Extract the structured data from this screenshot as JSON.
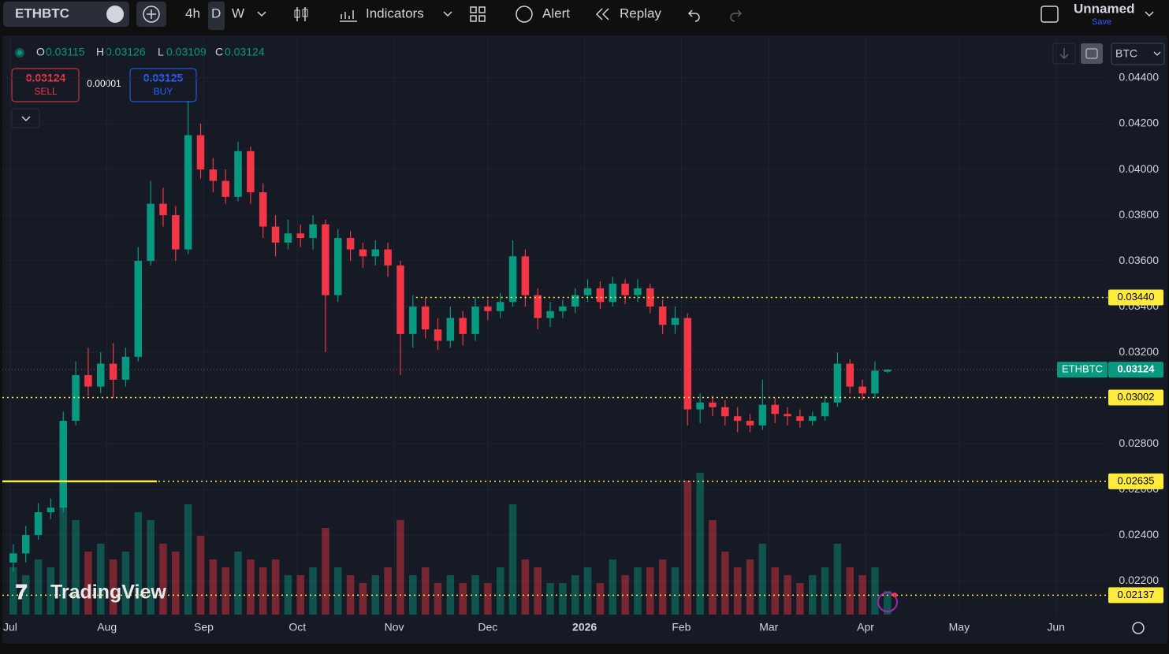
{
  "toolbar": {
    "symbol": "ETHBTC",
    "intervals": [
      "4h",
      "D",
      "W"
    ],
    "indicators": "Indicators",
    "alert": "Alert",
    "replay": "Replay",
    "layout_name": "Unnamed",
    "save": "Save"
  },
  "ohlc_legend": [
    {
      "label": "O",
      "value": "0.03115"
    },
    {
      "label": "H",
      "value": "0.03126"
    },
    {
      "label": "L",
      "value": "0.03109"
    },
    {
      "label": "C",
      "value": "0.03124"
    }
  ],
  "trade": {
    "sell_price": "0.03124",
    "sell": "SELL",
    "spread": "0.00001",
    "buy_price": "0.03125",
    "buy": "BUY"
  },
  "currency": "BTC",
  "watermark": "TradingView",
  "chart_data": {
    "type": "candlestick",
    "up_color": "#089981",
    "down_color": "#f23645",
    "x": [
      1,
      5,
      9,
      13,
      17,
      21,
      25,
      29,
      33,
      37,
      41,
      45,
      49,
      53,
      57,
      61,
      65,
      69,
      73,
      77,
      81,
      85,
      89,
      93,
      97,
      101,
      105,
      109,
      113,
      117,
      121,
      125,
      129,
      133,
      137,
      141,
      145,
      149,
      153,
      157,
      161,
      165,
      169,
      173,
      177,
      181,
      185,
      189,
      193,
      197,
      201,
      205,
      209,
      213,
      217,
      221,
      225,
      229,
      233,
      237,
      241,
      245,
      249,
      253,
      257,
      261,
      265,
      269,
      273,
      277,
      281
    ],
    "opens": [
      0.0228,
      0.0232,
      0.024,
      0.025,
      0.0252,
      0.029,
      0.031,
      0.0305,
      0.0315,
      0.0308,
      0.0318,
      0.036,
      0.0385,
      0.038,
      0.0365,
      0.0415,
      0.04,
      0.0395,
      0.0388,
      0.0408,
      0.039,
      0.0375,
      0.0368,
      0.0372,
      0.037,
      0.0376,
      0.0345,
      0.037,
      0.0365,
      0.0362,
      0.0365,
      0.0358,
      0.0328,
      0.034,
      0.033,
      0.0325,
      0.0335,
      0.0328,
      0.034,
      0.0338,
      0.0342,
      0.0362,
      0.0345,
      0.0335,
      0.0338,
      0.034,
      0.0345,
      0.0348,
      0.0342,
      0.035,
      0.0345,
      0.0348,
      0.034,
      0.0332,
      0.0335,
      0.0295,
      0.0298,
      0.0296,
      0.0292,
      0.029,
      0.0288,
      0.0297,
      0.0293,
      0.0292,
      0.029,
      0.0292,
      0.0298,
      0.0315,
      0.0305,
      0.0302,
      0.03115
    ],
    "highs": [
      0.0236,
      0.0244,
      0.0254,
      0.0256,
      0.0294,
      0.0316,
      0.0322,
      0.032,
      0.0324,
      0.0322,
      0.0366,
      0.0395,
      0.0392,
      0.0384,
      0.043,
      0.042,
      0.0405,
      0.04,
      0.0412,
      0.041,
      0.0394,
      0.038,
      0.0378,
      0.0376,
      0.038,
      0.0378,
      0.0374,
      0.0373,
      0.0368,
      0.0369,
      0.0368,
      0.036,
      0.0345,
      0.0344,
      0.0335,
      0.034,
      0.0338,
      0.0344,
      0.0343,
      0.0346,
      0.0369,
      0.0365,
      0.0348,
      0.0342,
      0.0343,
      0.0348,
      0.0352,
      0.0351,
      0.0353,
      0.0352,
      0.0352,
      0.035,
      0.0343,
      0.034,
      0.0337,
      0.0302,
      0.0301,
      0.0299,
      0.0296,
      0.0293,
      0.0308,
      0.03,
      0.0296,
      0.0295,
      0.0294,
      0.0301,
      0.032,
      0.0317,
      0.0308,
      0.0316,
      0.03126
    ],
    "lows": [
      0.0224,
      0.0228,
      0.0238,
      0.0247,
      0.025,
      0.0288,
      0.0301,
      0.0302,
      0.03,
      0.0305,
      0.0316,
      0.0358,
      0.0375,
      0.036,
      0.0363,
      0.0396,
      0.039,
      0.0385,
      0.0386,
      0.0385,
      0.037,
      0.0362,
      0.0365,
      0.0366,
      0.0365,
      0.032,
      0.0342,
      0.036,
      0.0357,
      0.0358,
      0.0353,
      0.031,
      0.0322,
      0.0326,
      0.0321,
      0.0322,
      0.0323,
      0.0325,
      0.0334,
      0.0335,
      0.034,
      0.034,
      0.033,
      0.0331,
      0.0335,
      0.0337,
      0.0342,
      0.0339,
      0.034,
      0.0341,
      0.0342,
      0.0337,
      0.0328,
      0.0328,
      0.0288,
      0.0289,
      0.0292,
      0.0288,
      0.0285,
      0.0285,
      0.0286,
      0.0289,
      0.0288,
      0.0287,
      0.0288,
      0.029,
      0.0296,
      0.0302,
      0.0299,
      0.03,
      0.03109
    ],
    "closes": [
      0.0232,
      0.024,
      0.025,
      0.0252,
      0.029,
      0.031,
      0.0305,
      0.0315,
      0.0308,
      0.0318,
      0.036,
      0.0385,
      0.038,
      0.0365,
      0.0415,
      0.04,
      0.0395,
      0.0388,
      0.0408,
      0.039,
      0.0375,
      0.0368,
      0.0372,
      0.037,
      0.0376,
      0.0345,
      0.037,
      0.0365,
      0.0362,
      0.0365,
      0.0358,
      0.0328,
      0.034,
      0.033,
      0.0325,
      0.0335,
      0.0328,
      0.034,
      0.0338,
      0.0342,
      0.0362,
      0.0345,
      0.0335,
      0.0338,
      0.034,
      0.0345,
      0.0348,
      0.0342,
      0.035,
      0.0345,
      0.0348,
      0.034,
      0.0332,
      0.0335,
      0.0295,
      0.0298,
      0.0296,
      0.0292,
      0.029,
      0.0288,
      0.0297,
      0.0293,
      0.0292,
      0.029,
      0.0292,
      0.0298,
      0.0315,
      0.0305,
      0.0302,
      0.0312,
      0.03124
    ],
    "volume": [
      30,
      25,
      35,
      30,
      70,
      60,
      40,
      45,
      35,
      40,
      65,
      60,
      45,
      40,
      70,
      50,
      35,
      30,
      40,
      35,
      30,
      35,
      25,
      25,
      30,
      55,
      30,
      25,
      20,
      25,
      30,
      60,
      25,
      30,
      20,
      25,
      20,
      25,
      20,
      30,
      70,
      35,
      30,
      20,
      20,
      25,
      30,
      20,
      35,
      25,
      30,
      30,
      35,
      30,
      85,
      90,
      60,
      40,
      30,
      35,
      45,
      30,
      25,
      20,
      25,
      30,
      45,
      30,
      25,
      30,
      15
    ],
    "volume_lim": [
      0,
      100
    ],
    "xlim": [
      -2.5,
      351.5
    ],
    "xticks": [
      {
        "value": 0,
        "label": "Jul"
      },
      {
        "value": 31,
        "label": "Aug"
      },
      {
        "value": 62,
        "label": "Sep"
      },
      {
        "value": 92,
        "label": "Oct"
      },
      {
        "value": 123,
        "label": "Nov"
      },
      {
        "value": 153,
        "label": "Dec"
      },
      {
        "value": 184,
        "label": "2026"
      },
      {
        "value": 215,
        "label": "Feb"
      },
      {
        "value": 243,
        "label": "Mar"
      },
      {
        "value": 274,
        "label": "Apr"
      },
      {
        "value": 304,
        "label": "May"
      },
      {
        "value": 335,
        "label": "Jun"
      }
    ],
    "ylim": [
      0.02052,
      0.04576
    ],
    "yticks": [
      {
        "value": 0.022,
        "label": "0.02200"
      },
      {
        "value": 0.024,
        "label": "0.02400"
      },
      {
        "value": 0.026,
        "label": "0.02600"
      },
      {
        "value": 0.028,
        "label": "0.02800"
      },
      {
        "value": 0.03,
        "label": "0.03000"
      },
      {
        "value": 0.032,
        "label": "0.03200"
      },
      {
        "value": 0.034,
        "label": "0.03400"
      },
      {
        "value": 0.036,
        "label": "0.03600"
      },
      {
        "value": 0.038,
        "label": "0.03800"
      },
      {
        "value": 0.04,
        "label": "0.04000"
      },
      {
        "value": 0.042,
        "label": "0.04200"
      },
      {
        "value": 0.044,
        "label": "0.04400"
      }
    ],
    "grid": true,
    "hlines": [
      {
        "value": 0.0344,
        "label": "0.03440",
        "color": "#ffeb3b",
        "from_x": 130
      },
      {
        "value": 0.03002,
        "label": "0.03002",
        "color": "#ffeb3b"
      },
      {
        "value": 0.02635,
        "label": "0.02635",
        "color": "#ffeb3b"
      },
      {
        "value": 0.02137,
        "label": "0.02137",
        "color": "#ffeb3b"
      }
    ],
    "segments": [
      {
        "value": 0.02635,
        "from_x": -2.5,
        "to_x": 47,
        "color": "#ffeb3b"
      }
    ],
    "last_price": {
      "name": "ETHBTC",
      "value": 0.03124,
      "color": "#089981"
    }
  }
}
